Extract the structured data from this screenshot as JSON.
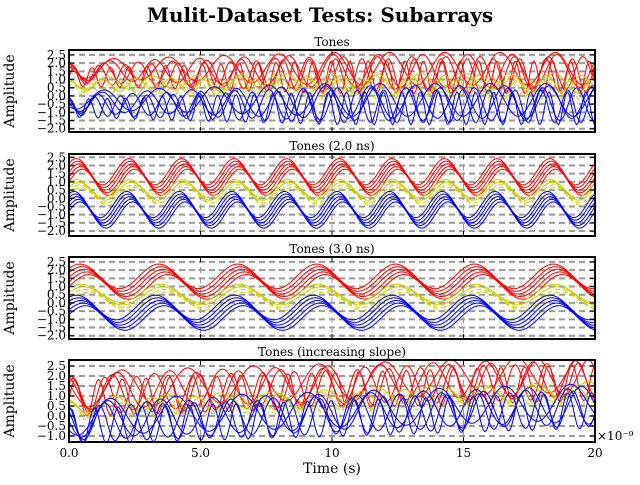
{
  "chart_data": {
    "title": "Mulit-Dataset Tests: Subarrays",
    "xlabel": "Time (s)",
    "x_scale_label": "×10⁻⁹",
    "x_ticks": [
      0,
      5,
      10,
      15,
      20
    ],
    "x_tick_labels": [
      "0.0",
      "5.0",
      "10",
      "15",
      "20"
    ],
    "xlim": [
      0,
      20
    ],
    "grid_color": "#999999",
    "panels": [
      {
        "type": "line",
        "title": "Tones",
        "ylabel": "Amplitude",
        "ylim": [
          -2.2,
          2.8
        ],
        "y_ticks": [
          -2.0,
          -1.5,
          -1.0,
          -0.5,
          0.0,
          0.5,
          1.0,
          1.5,
          2.0,
          2.5
        ],
        "y_tick_labels": [
          "−2.0",
          "−1.5",
          "−1.0",
          "−0.5",
          "0.0",
          "0.5",
          "1.0",
          "1.5",
          "2.0",
          "2.5"
        ],
        "waveform": "mixed_tones",
        "series": [
          {
            "name": "red",
            "color": "#ff0000",
            "offset": 1.4,
            "amplitude": 1.0,
            "count": 5
          },
          {
            "name": "yellow",
            "color": "#cccc00",
            "offset": 0.6,
            "amplitude": 0.6,
            "count": 4,
            "dashed_count": 2
          },
          {
            "name": "blue",
            "color": "#0000ff",
            "offset": -0.5,
            "amplitude": 1.0,
            "count": 5
          }
        ]
      },
      {
        "type": "line",
        "title": "Tones (2.0 ns)",
        "ylabel": "Amplitude",
        "ylim": [
          -2.3,
          2.7
        ],
        "y_ticks": [
          -2.0,
          -1.5,
          -1.0,
          -0.5,
          0.0,
          0.5,
          1.0,
          1.5,
          2.0,
          2.5
        ],
        "y_tick_labels": [
          "−2.0",
          "−1.5",
          "−1.0",
          "−0.5",
          "0.0",
          "0.5",
          "1.0",
          "1.5",
          "2.0",
          "2.5"
        ],
        "waveform": "tone",
        "period_ns": 2.0,
        "series": [
          {
            "name": "red",
            "color": "#ff0000",
            "offset": 1.3,
            "amplitude": 0.8,
            "count": 5
          },
          {
            "name": "yellow",
            "color": "#cccc00",
            "offset": 0.35,
            "amplitude": 0.55,
            "count": 4,
            "dashed_count": 2
          },
          {
            "name": "blue",
            "color": "#0000ff",
            "offset": -0.7,
            "amplitude": 0.8,
            "count": 5
          }
        ]
      },
      {
        "type": "line",
        "title": "Tones (3.0 ns)",
        "ylabel": "Amplitude",
        "ylim": [
          -2.2,
          2.8
        ],
        "y_ticks": [
          -2.0,
          -1.5,
          -1.0,
          -0.5,
          0.0,
          0.5,
          1.0,
          1.5,
          2.0,
          2.5
        ],
        "y_tick_labels": [
          "−2.0",
          "−1.5",
          "−1.0",
          "−0.5",
          "0.0",
          "0.5",
          "1.0",
          "1.5",
          "2.0",
          "2.5"
        ],
        "waveform": "tone",
        "period_ns": 3.0,
        "series": [
          {
            "name": "red",
            "color": "#ff0000",
            "offset": 1.3,
            "amplitude": 0.75,
            "count": 5
          },
          {
            "name": "yellow",
            "color": "#cccc00",
            "offset": 0.35,
            "amplitude": 0.55,
            "count": 4,
            "dashed_count": 2
          },
          {
            "name": "blue",
            "color": "#0000ff",
            "offset": -0.6,
            "amplitude": 0.75,
            "count": 5
          }
        ]
      },
      {
        "type": "line",
        "title": "Tones (increasing slope)",
        "ylabel": "Amplitude",
        "ylim": [
          -1.3,
          2.8
        ],
        "y_ticks": [
          -1.0,
          -0.5,
          0.0,
          0.5,
          1.0,
          1.5,
          2.0,
          2.5
        ],
        "y_tick_labels": [
          "−1.0",
          "−0.5",
          "0.0",
          "0.5",
          "1.0",
          "1.5",
          "2.0",
          "2.5"
        ],
        "waveform": "slope_tones",
        "series": [
          {
            "name": "red",
            "color": "#ff0000",
            "offset": 1.1,
            "amplitude": 0.9,
            "slope": 0.04,
            "count": 5
          },
          {
            "name": "yellow",
            "color": "#cccc00",
            "offset": 0.35,
            "amplitude": 0.4,
            "slope": 0.04,
            "count": 4,
            "dashed_count": 2
          },
          {
            "name": "blue",
            "color": "#0000ff",
            "offset": -0.3,
            "amplitude": 0.9,
            "slope": 0.04,
            "count": 5
          }
        ]
      }
    ]
  }
}
